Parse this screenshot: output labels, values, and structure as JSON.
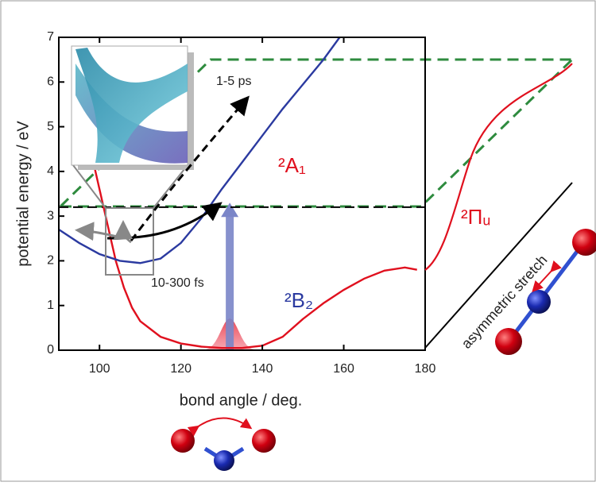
{
  "chart_data": {
    "type": "line",
    "xlabel": "bond angle / deg.",
    "ylabel": "potential energy / eV",
    "xlim": [
      90,
      180
    ],
    "ylim": [
      0,
      7
    ],
    "xticks": [
      100,
      120,
      140,
      160,
      180
    ],
    "yticks": [
      0,
      1,
      2,
      3,
      4,
      5,
      6,
      7
    ],
    "series": [
      {
        "name": "²A₁",
        "color": "#e0101e",
        "x": [
          98.5,
          100,
          102,
          104,
          106,
          108,
          110,
          115,
          120,
          125,
          130,
          135,
          140,
          145,
          150,
          155,
          160,
          165,
          170,
          175,
          178
        ],
        "values": [
          4.2,
          3.6,
          2.8,
          2.0,
          1.4,
          0.95,
          0.65,
          0.3,
          0.15,
          0.08,
          0.05,
          0.05,
          0.1,
          0.3,
          0.7,
          1.05,
          1.35,
          1.6,
          1.78,
          1.85,
          1.8
        ]
      },
      {
        "name": "²B₂",
        "color": "#2b3aa0",
        "x": [
          90,
          95,
          100,
          105,
          110,
          115,
          120,
          125,
          130,
          135,
          140,
          145,
          150,
          155,
          159
        ],
        "values": [
          2.7,
          2.4,
          2.15,
          2.0,
          1.95,
          2.05,
          2.4,
          2.95,
          3.6,
          4.2,
          4.8,
          5.4,
          5.95,
          6.5,
          7.0
        ]
      }
    ],
    "reference_line": 3.2,
    "excitation": {
      "x": 132,
      "value": 3.3,
      "color": "#7b86c8"
    },
    "annotations": [
      "1-5 ps",
      "10-300 fs",
      "asymmetric stretch",
      "²Πᵤ"
    ]
  }
}
